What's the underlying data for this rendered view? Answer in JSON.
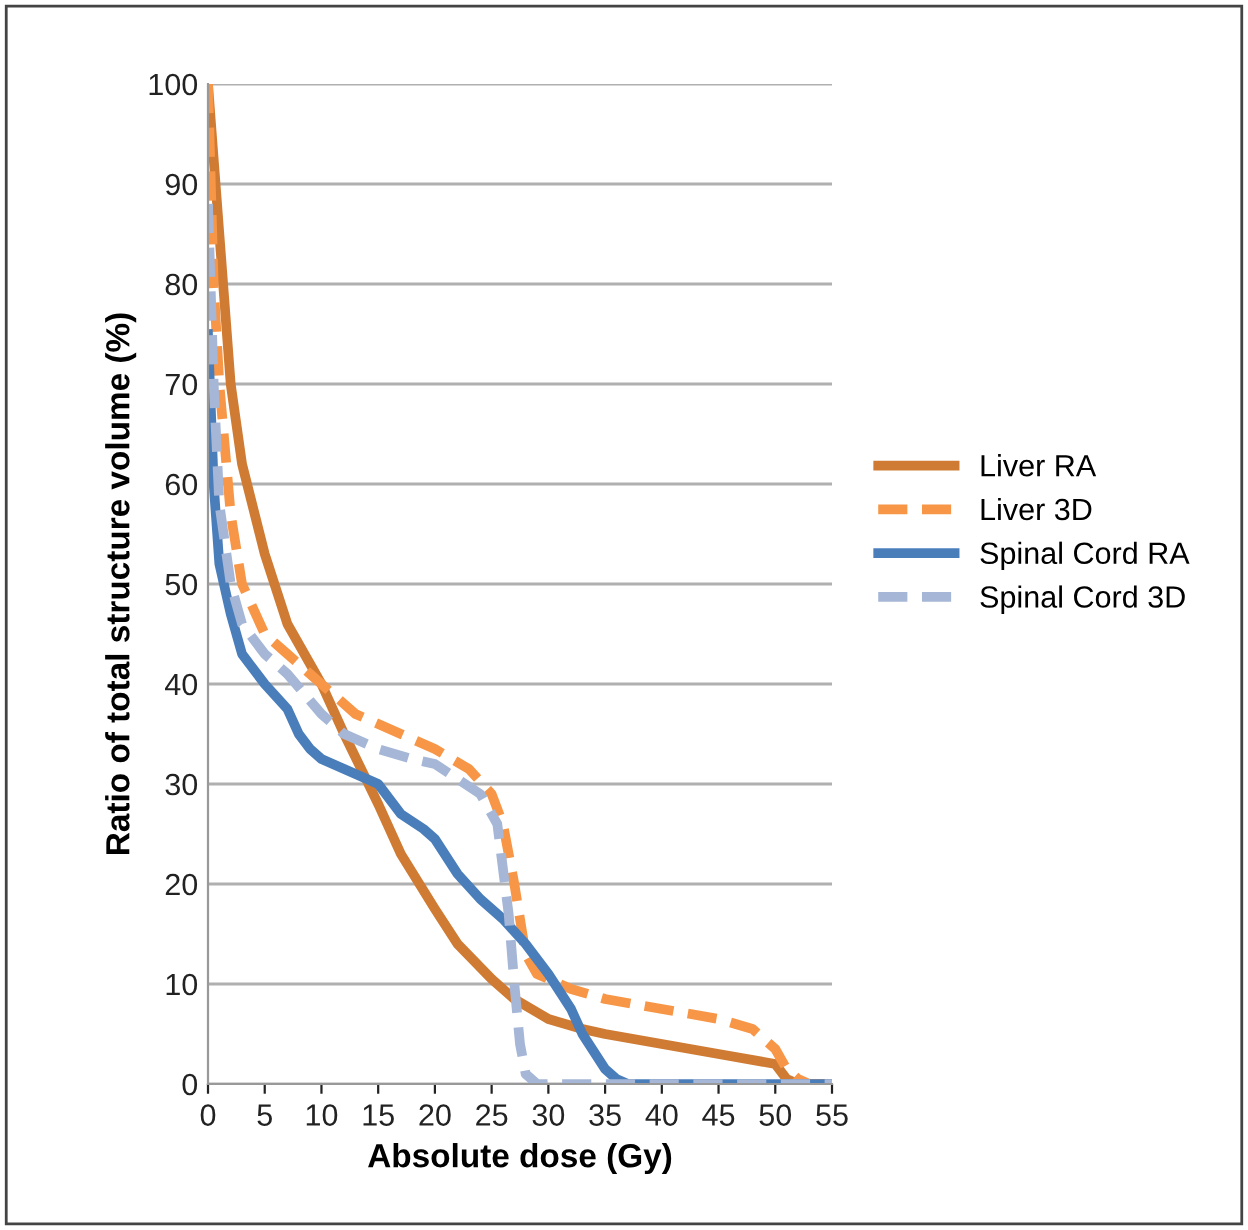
{
  "chart_data": {
    "type": "line",
    "xlabel": "Absolute dose (Gy)",
    "ylabel": "Ratio of total structure volume (%)",
    "xlim": [
      0,
      55
    ],
    "xticks": [
      0,
      5,
      10,
      15,
      20,
      25,
      30,
      35,
      40,
      45,
      50,
      55
    ],
    "ylim": [
      0,
      100
    ],
    "yticks": [
      0,
      10,
      20,
      30,
      40,
      50,
      60,
      70,
      80,
      90,
      100
    ],
    "grid": "y",
    "legend": "right",
    "marker": "none",
    "series": [
      {
        "name": "Liver RA",
        "color": "#d07b33",
        "line_style": "solid",
        "x": [
          0,
          1,
          2,
          3,
          5,
          7,
          10,
          12,
          15,
          17,
          20,
          22,
          25,
          27,
          30,
          33,
          35,
          40,
          45,
          50,
          51,
          52,
          55
        ],
        "values": [
          100,
          85,
          70,
          62,
          53,
          46,
          40,
          35,
          28,
          23,
          17.5,
          14,
          10.5,
          8.5,
          6.5,
          5.5,
          5,
          4,
          3,
          2,
          0.5,
          0,
          0
        ]
      },
      {
        "name": "Liver 3D",
        "color": "#f79646",
        "line_style": "dashed",
        "x": [
          0,
          0.5,
          1,
          2,
          3,
          5,
          7,
          10,
          13,
          17,
          20,
          23,
          25,
          26,
          27,
          28,
          29,
          32,
          35,
          40,
          45,
          48,
          50,
          51,
          52,
          53,
          55
        ],
        "values": [
          100,
          80,
          70,
          57,
          50,
          45,
          43,
          40,
          37,
          35,
          33.5,
          31.5,
          29,
          26,
          20,
          13,
          11,
          9.5,
          8.5,
          7.5,
          6.5,
          5.5,
          3.5,
          1.5,
          0.5,
          0,
          0
        ]
      },
      {
        "name": "Spinal Cord RA",
        "color": "#4a7ebb",
        "line_style": "solid",
        "x": [
          0,
          0.5,
          1,
          2,
          3,
          5,
          7,
          8,
          9,
          10,
          12,
          14,
          15,
          17,
          19,
          20,
          22,
          24,
          26,
          28,
          30,
          32,
          33,
          35,
          36,
          37,
          55
        ],
        "values": [
          75,
          60,
          52,
          47,
          43,
          40,
          37.5,
          35,
          33.5,
          32.5,
          31.5,
          30.5,
          30,
          27,
          25.5,
          24.5,
          21,
          18.5,
          16.5,
          14,
          11,
          7.5,
          5,
          1.5,
          0.5,
          0,
          0
        ]
      },
      {
        "name": "Spinal Cord 3D",
        "color": "#a5b6d6",
        "line_style": "dashed",
        "x": [
          0,
          0.5,
          1,
          2,
          3,
          5,
          7,
          10,
          12,
          15,
          18,
          20,
          22,
          24,
          25.5,
          26.5,
          27,
          27.5,
          28,
          29,
          55
        ],
        "values": [
          88,
          70,
          58,
          50,
          46,
          43,
          41,
          37,
          35,
          33.5,
          32.5,
          32,
          30.5,
          29,
          26,
          17,
          10,
          4,
          1,
          0,
          0
        ]
      }
    ]
  }
}
